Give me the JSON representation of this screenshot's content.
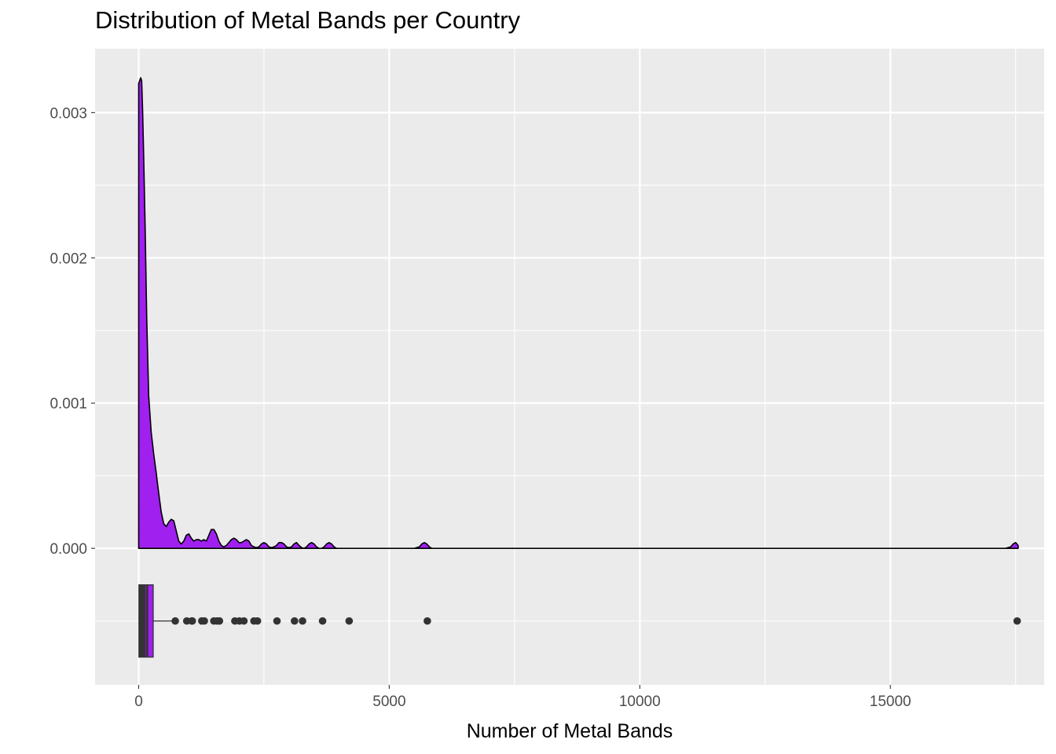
{
  "chart_data": {
    "type": "density+boxplot",
    "title": "Distribution of Metal Bands per Country",
    "xlabel": "Number of Metal Bands",
    "ylabel": "",
    "xlim": [
      -870,
      18070
    ],
    "ylim": [
      -0.00094,
      0.00344
    ],
    "x_ticks": [
      0,
      5000,
      10000,
      15000
    ],
    "x_tick_labels": [
      "0",
      "5000",
      "10000",
      "15000"
    ],
    "y_ticks": [
      0.0,
      0.001,
      0.002,
      0.003
    ],
    "y_tick_labels": [
      "0.000",
      "0.001",
      "0.002",
      "0.003"
    ],
    "grid": true,
    "fill_color": "#a020f0",
    "panel_color": "#ebebeb",
    "density": {
      "x": [
        0,
        20,
        40,
        60,
        80,
        100,
        130,
        160,
        200,
        250,
        300,
        350,
        400,
        450,
        500,
        550,
        600,
        650,
        700,
        750,
        800,
        850,
        900,
        950,
        1000,
        1050,
        1100,
        1150,
        1200,
        1250,
        1300,
        1350,
        1400,
        1450,
        1500,
        1550,
        1600,
        1650,
        1700,
        1750,
        1800,
        1850,
        1900,
        1950,
        2000,
        2050,
        2100,
        2150,
        2200,
        2250,
        2300,
        2350,
        2400,
        2450,
        2500,
        2550,
        2600,
        2650,
        2700,
        2750,
        2800,
        2850,
        2900,
        2950,
        3000,
        3050,
        3100,
        3150,
        3200,
        3250,
        3300,
        3350,
        3400,
        3450,
        3500,
        3550,
        3600,
        3650,
        3700,
        3750,
        3800,
        3850,
        3900,
        3950,
        4000,
        4050,
        4100,
        4150,
        4200,
        4250,
        4300,
        4350,
        4400,
        5500,
        5600,
        5650,
        5700,
        5750,
        5800,
        5850,
        5900,
        6000,
        17300,
        17400,
        17450,
        17500,
        17550
      ],
      "y": [
        0.0032,
        0.00322,
        0.00324,
        0.00322,
        0.003,
        0.0027,
        0.0022,
        0.0016,
        0.00105,
        0.0008,
        0.00065,
        0.00052,
        0.00038,
        0.00025,
        0.00017,
        0.00015,
        0.00018,
        0.0002,
        0.00019,
        0.00012,
        5e-05,
        3e-05,
        5e-05,
        9e-05,
        0.0001,
        7e-05,
        5e-05,
        6e-05,
        6e-05,
        5e-05,
        6e-05,
        5e-05,
        9e-05,
        0.00013,
        0.00013,
        0.0001,
        5e-05,
        2e-05,
        1e-05,
        2e-05,
        4e-05,
        6e-05,
        7e-05,
        6e-05,
        4e-05,
        4e-05,
        5e-05,
        6e-05,
        5e-05,
        2e-05,
        1e-05,
        5e-06,
        1e-05,
        3e-05,
        4e-05,
        3e-05,
        1e-05,
        5e-06,
        1e-05,
        2e-05,
        4e-05,
        4e-05,
        3e-05,
        1e-05,
        5e-06,
        1e-05,
        3e-05,
        4e-05,
        2e-05,
        5e-06,
        0.0,
        1e-05,
        3e-05,
        4e-05,
        3e-05,
        1e-05,
        0.0,
        0.0,
        1e-05,
        3e-05,
        4e-05,
        3e-05,
        1e-05,
        0.0,
        0.0,
        0.0,
        0.0,
        0.0,
        0.0,
        0.0,
        0.0,
        0.0,
        0.0,
        0.0,
        1e-05,
        3e-05,
        4e-05,
        3e-05,
        1e-05,
        0.0,
        0.0,
        0.0,
        0.0,
        1e-05,
        3e-05,
        4e-05,
        2e-05
      ]
    },
    "boxplot": {
      "y_position": -0.0005,
      "min": 0,
      "q1": 5,
      "median": 170,
      "q3": 290,
      "whisker_high": 700,
      "outliers": [
        730,
        960,
        1060,
        1070,
        1260,
        1310,
        1500,
        1560,
        1610,
        1610,
        1920,
        2010,
        2100,
        2300,
        2370,
        2760,
        3110,
        3270,
        3670,
        4200,
        5760,
        17530
      ]
    }
  }
}
